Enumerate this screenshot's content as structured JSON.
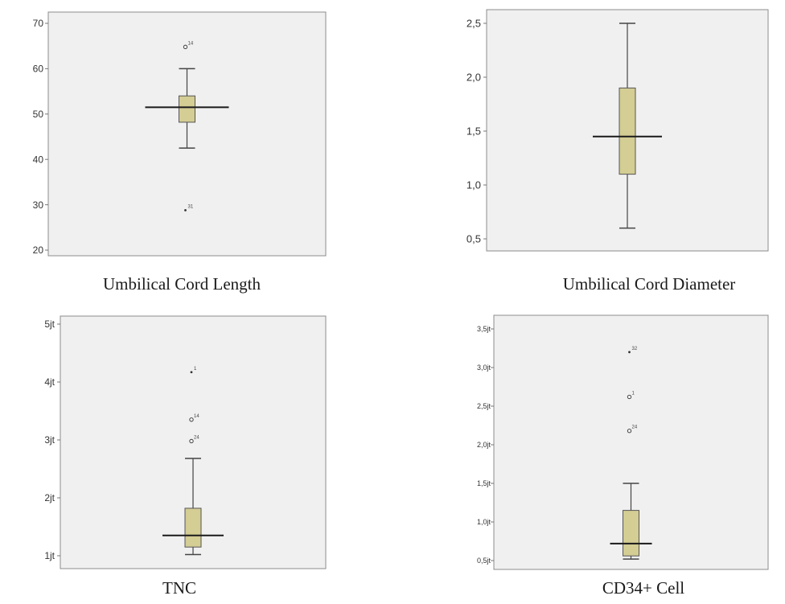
{
  "colors": {
    "panel_bg": "#f0f0f0",
    "panel_border": "#8c8c8c",
    "box_fill": "#d4cd94",
    "box_stroke": "#555555",
    "median": "#1a1a1a",
    "whisker": "#444444"
  },
  "chart_data": [
    {
      "type": "boxplot",
      "caption": "Umbilical Cord Length",
      "ylim": [
        20,
        70
      ],
      "yticks": [
        {
          "value": 20,
          "label": "20"
        },
        {
          "value": 30,
          "label": "30"
        },
        {
          "value": 40,
          "label": "40"
        },
        {
          "value": 50,
          "label": "50"
        },
        {
          "value": 60,
          "label": "60"
        },
        {
          "value": 70,
          "label": "70"
        }
      ],
      "box": {
        "whisker_low": 42.5,
        "q1": 48.2,
        "median": 51.5,
        "q3": 54.0,
        "whisker_high": 60.0
      },
      "outliers": [
        {
          "value": 64.8,
          "label": "14",
          "marker": "circle"
        },
        {
          "value": 28.8,
          "label": "31",
          "marker": "star"
        }
      ]
    },
    {
      "type": "boxplot",
      "caption": "Umbilical Cord Diameter",
      "ylim": [
        0.45,
        2.55
      ],
      "yticks": [
        {
          "value": 0.5,
          "label": "0,5"
        },
        {
          "value": 1.0,
          "label": "1,0"
        },
        {
          "value": 1.5,
          "label": "1,5"
        },
        {
          "value": 2.0,
          "label": "2,0"
        },
        {
          "value": 2.5,
          "label": "2,5"
        }
      ],
      "box": {
        "whisker_low": 0.6,
        "q1": 1.1,
        "median": 1.45,
        "q3": 1.9,
        "whisker_high": 2.5
      },
      "outliers": []
    },
    {
      "type": "boxplot",
      "caption": "TNC",
      "ylim": [
        0.9,
        5.1
      ],
      "yticks": [
        {
          "value": 1,
          "label": "1jt"
        },
        {
          "value": 2,
          "label": "2jt"
        },
        {
          "value": 3,
          "label": "3jt"
        },
        {
          "value": 4,
          "label": "4jt"
        },
        {
          "value": 5,
          "label": "5jt"
        }
      ],
      "box": {
        "whisker_low": 1.02,
        "q1": 1.15,
        "median": 1.35,
        "q3": 1.82,
        "whisker_high": 2.68
      },
      "outliers": [
        {
          "value": 4.17,
          "label": "1",
          "marker": "star"
        },
        {
          "value": 3.35,
          "label": "14",
          "marker": "circle"
        },
        {
          "value": 2.98,
          "label": "24",
          "marker": "circle"
        }
      ]
    },
    {
      "type": "boxplot",
      "caption": "CD34+ Cell",
      "ylim": [
        0.45,
        3.55
      ],
      "yticks": [
        {
          "value": 0.5,
          "label": "0,5jt"
        },
        {
          "value": 1.0,
          "label": "1,0jt"
        },
        {
          "value": 1.5,
          "label": "1,5jt"
        },
        {
          "value": 2.0,
          "label": "2,0jt"
        },
        {
          "value": 2.5,
          "label": "2,5jt"
        },
        {
          "value": 3.0,
          "label": "3,0jt"
        },
        {
          "value": 3.5,
          "label": "3,5jt"
        }
      ],
      "box": {
        "whisker_low": 0.52,
        "q1": 0.56,
        "median": 0.72,
        "q3": 1.15,
        "whisker_high": 1.5
      },
      "outliers": [
        {
          "value": 3.2,
          "label": "32",
          "marker": "star"
        },
        {
          "value": 2.62,
          "label": "1",
          "marker": "circle"
        },
        {
          "value": 2.18,
          "label": "24",
          "marker": "circle"
        }
      ]
    }
  ]
}
